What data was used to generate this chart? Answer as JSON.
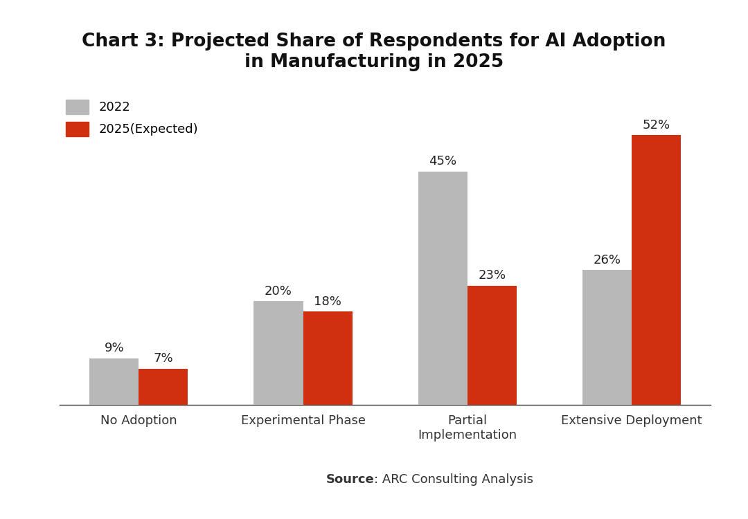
{
  "title_line1": "Chart 3: Projected Share of Respondents for AI Adoption",
  "title_line2": "in Manufacturing in 2025",
  "categories": [
    "No Adoption",
    "Experimental Phase",
    "Partial\nImplementation",
    "Extensive Deployment"
  ],
  "values_2022": [
    9,
    20,
    45,
    26
  ],
  "values_2025": [
    7,
    18,
    23,
    52
  ],
  "labels_2022": [
    "9%",
    "20%",
    "45%",
    "26%"
  ],
  "labels_2025": [
    "7%",
    "18%",
    "23%",
    "52%"
  ],
  "color_2022": "#b8b8b8",
  "color_2025": "#d03010",
  "legend_labels": [
    "2022",
    "2025(Expected)"
  ],
  "source_bold": "Source",
  "source_rest": ": ARC Consulting Analysis",
  "ylim": [
    0,
    60
  ],
  "bar_width": 0.3,
  "background_color": "#ffffff",
  "title_fontsize": 19,
  "label_fontsize": 13,
  "tick_fontsize": 13,
  "legend_fontsize": 13,
  "source_fontsize": 13
}
